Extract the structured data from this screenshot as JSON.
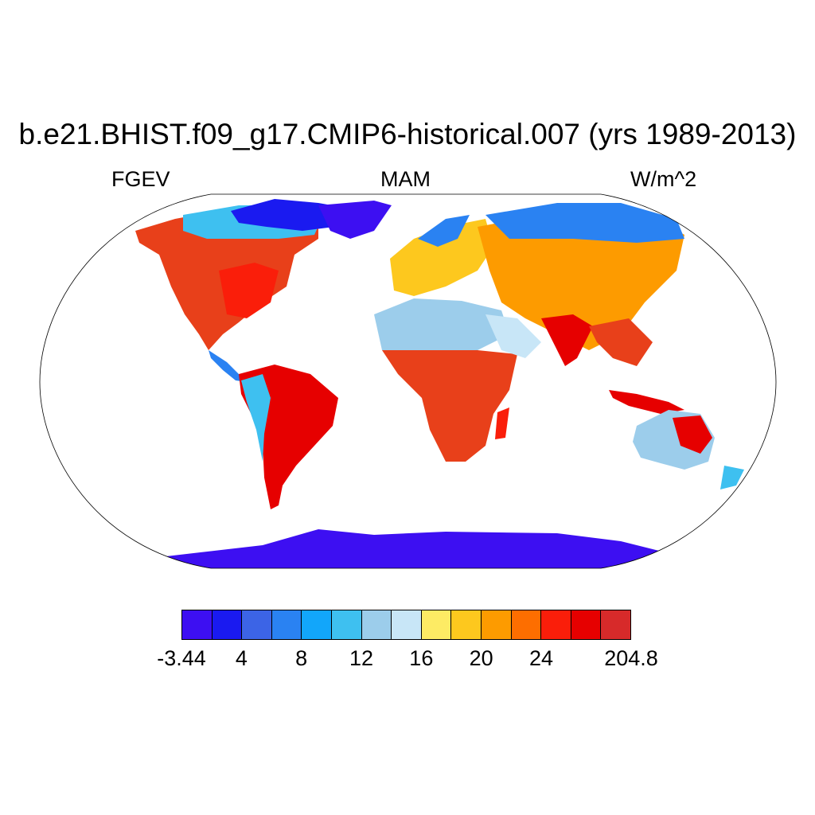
{
  "title": "b.e21.BHIST.f09_g17.CMIP6-historical.007 (yrs 1989-2013)",
  "subtitle_left": "FGEV",
  "subtitle_center": "MAM",
  "subtitle_right": "W/m^2",
  "colorbar": {
    "colors": [
      "#3d0ff2",
      "#1a1af0",
      "#3c64e6",
      "#2a82f2",
      "#12a6fa",
      "#3ec0f0",
      "#9ccdeb",
      "#c8e6f7",
      "#fdeb64",
      "#fdc81e",
      "#fd9b00",
      "#fd6e00",
      "#fa1e0a",
      "#e60000",
      "#d72a2a"
    ],
    "labels": [
      "-3.44",
      "4",
      "8",
      "12",
      "16",
      "20",
      "24",
      "204.8"
    ],
    "label_boundary_index": [
      0,
      2,
      4,
      6,
      8,
      10,
      12,
      15
    ]
  },
  "map": {
    "projection": "Robinson",
    "ocean_color": "#ffffff",
    "outline_color": "#000000"
  }
}
